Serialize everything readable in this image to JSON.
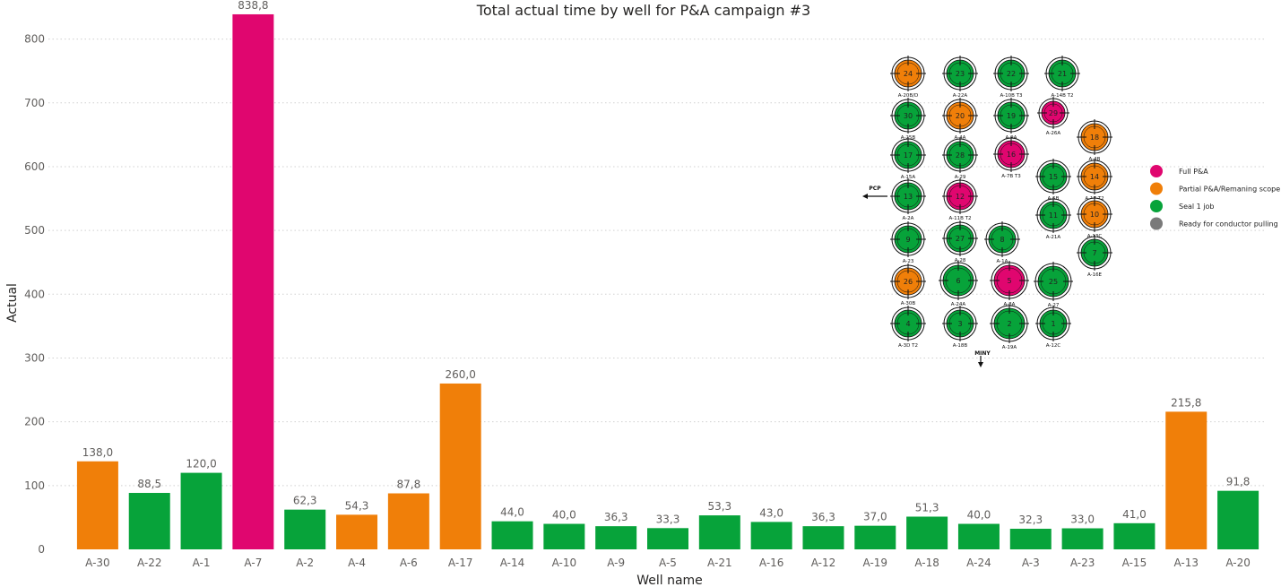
{
  "chart_data": {
    "type": "bar",
    "title": "Total actual time by well for P&A campaign #3",
    "xlabel": "Well name",
    "ylabel": "Actual",
    "ylim": [
      0,
      850
    ],
    "yticks": [
      0,
      100,
      200,
      300,
      400,
      500,
      600,
      700,
      800
    ],
    "grid": true,
    "categories": [
      "A-30",
      "A-22",
      "A-1",
      "A-7",
      "A-2",
      "A-4",
      "A-6",
      "A-17",
      "A-14",
      "A-10",
      "A-9",
      "A-5",
      "A-21",
      "A-16",
      "A-12",
      "A-19",
      "A-18",
      "A-24",
      "A-3",
      "A-23",
      "A-15",
      "A-13",
      "A-20"
    ],
    "values": [
      138.0,
      88.5,
      120.0,
      838.8,
      62.3,
      54.3,
      87.8,
      260.0,
      44.0,
      40.0,
      36.3,
      33.3,
      53.3,
      43.0,
      36.3,
      37.0,
      51.3,
      40.0,
      32.3,
      33.0,
      41.0,
      215.8,
      91.8
    ],
    "value_labels": [
      "138,0",
      "88,5",
      "120,0",
      "838,8",
      "62,3",
      "54,3",
      "87,8",
      "260,0",
      "44,0",
      "40,0",
      "36,3",
      "33,3",
      "53,3",
      "43,0",
      "36,3",
      "37,0",
      "51,3",
      "40,0",
      "32,3",
      "33,0",
      "41,0",
      "215,8",
      "91,8"
    ],
    "bar_status": [
      "partial",
      "seal",
      "seal",
      "full",
      "seal",
      "partial",
      "partial",
      "partial",
      "seal",
      "seal",
      "seal",
      "seal",
      "seal",
      "seal",
      "seal",
      "seal",
      "seal",
      "seal",
      "seal",
      "seal",
      "seal",
      "partial",
      "seal"
    ]
  },
  "colors": {
    "full": "#e0066f",
    "partial": "#f07f09",
    "seal": "#07a33a",
    "ready": "#7a7a7a",
    "grid": "#d0d0d0"
  },
  "well_map": {
    "legend": [
      {
        "label": "Full P&A",
        "status": "full"
      },
      {
        "label": "Partial P&A/Remaning scope",
        "status": "partial"
      },
      {
        "label": "Seal 1 job",
        "status": "seal"
      },
      {
        "label": "Ready for conductor pulling",
        "status": "ready"
      }
    ],
    "direction_labels": [
      "PCP",
      "MINY"
    ],
    "slots": [
      {
        "num": "24",
        "label": "A-20B/D",
        "status": "partial"
      },
      {
        "num": "23",
        "label": "A-22A",
        "status": "seal"
      },
      {
        "num": "22",
        "label": "A-10B T3",
        "status": "seal"
      },
      {
        "num": "21",
        "label": "A-14B T2",
        "status": "seal"
      },
      {
        "num": "30",
        "label": "A-25B",
        "status": "seal"
      },
      {
        "num": "20",
        "label": "A-4A",
        "status": "partial"
      },
      {
        "num": "19",
        "label": "A-9A",
        "status": "seal"
      },
      {
        "num": "29",
        "label": "A-26A",
        "status": "full"
      },
      {
        "num": "18",
        "label": "A-4B",
        "status": "partial"
      },
      {
        "num": "17",
        "label": "A-15A",
        "status": "seal"
      },
      {
        "num": "28",
        "label": "A-29",
        "status": "seal"
      },
      {
        "num": "16",
        "label": "A-7B T3",
        "status": "full"
      },
      {
        "num": "15",
        "label": "A-5B",
        "status": "seal"
      },
      {
        "num": "14",
        "label": "A-17 T2",
        "status": "partial"
      },
      {
        "num": "13",
        "label": "A-2A",
        "status": "seal"
      },
      {
        "num": "12",
        "label": "A-11B T2",
        "status": "full"
      },
      {
        "num": "11",
        "label": "A-21A",
        "status": "seal"
      },
      {
        "num": "10",
        "label": "A-13C",
        "status": "partial"
      },
      {
        "num": "9",
        "label": "A-23",
        "status": "seal"
      },
      {
        "num": "27",
        "label": "A-28",
        "status": "seal"
      },
      {
        "num": "8",
        "label": "A-1A",
        "status": "seal"
      },
      {
        "num": "7",
        "label": "A-16E",
        "status": "seal"
      },
      {
        "num": "26",
        "label": "A-30B",
        "status": "partial"
      },
      {
        "num": "6",
        "label": "A-24A",
        "status": "seal"
      },
      {
        "num": "5",
        "label": "A-8A",
        "status": "full"
      },
      {
        "num": "25",
        "label": "A-27",
        "status": "seal"
      },
      {
        "num": "4",
        "label": "A-3D T2",
        "status": "seal"
      },
      {
        "num": "3",
        "label": "A-18B",
        "status": "seal"
      },
      {
        "num": "2",
        "label": "A-19A",
        "status": "seal"
      },
      {
        "num": "1",
        "label": "A-12C",
        "status": "seal"
      }
    ]
  }
}
